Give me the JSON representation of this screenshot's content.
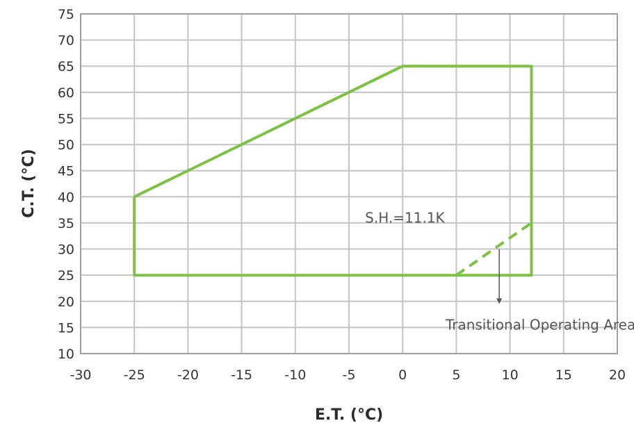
{
  "chart_data": {
    "type": "line",
    "xlabel": "E.T. (°C)",
    "ylabel": "C.T. (°C)",
    "xlim": [
      -30,
      20
    ],
    "ylim": [
      10,
      75
    ],
    "xticks": [
      -30,
      -25,
      -20,
      -15,
      -10,
      -5,
      0,
      5,
      10,
      15,
      20
    ],
    "yticks": [
      10,
      15,
      20,
      25,
      30,
      35,
      40,
      45,
      50,
      55,
      60,
      65,
      70,
      75
    ],
    "grid": true,
    "line_color": "#7dc142",
    "series": [
      {
        "style": "solid",
        "x": [
          -25,
          0,
          12,
          12,
          -25,
          -25
        ],
        "y": [
          40,
          65,
          65,
          25,
          25,
          40
        ]
      },
      {
        "style": "dashed",
        "x": [
          5,
          12
        ],
        "y": [
          25,
          35
        ]
      }
    ],
    "annotations": [
      {
        "text": "S.H.=11.1K",
        "x": -3.5,
        "y": 36
      },
      {
        "text": "Transitional Operating Area",
        "x": 4,
        "y": 15.5,
        "arrow_from": [
          9,
          30
        ],
        "arrow_to": [
          9,
          19.5
        ]
      }
    ]
  }
}
